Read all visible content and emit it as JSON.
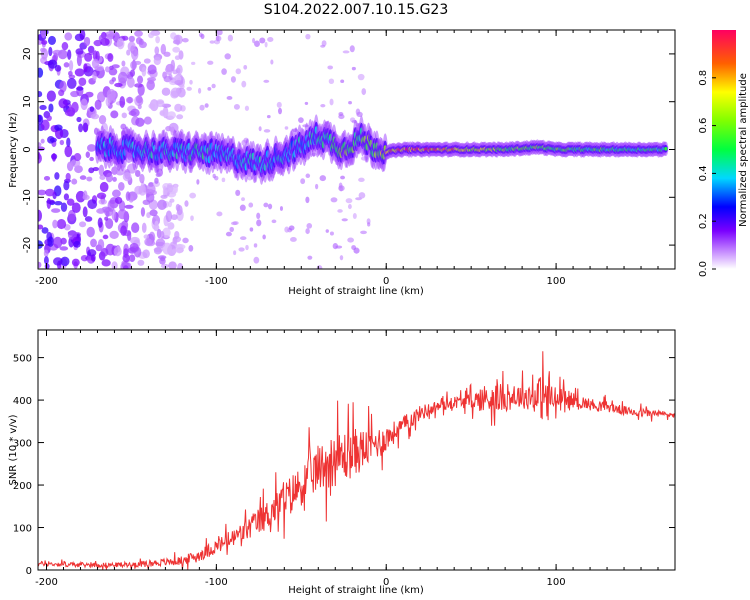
{
  "title": "S104.2022.007.10.15.G23",
  "chart_data": [
    {
      "type": "heatmap",
      "xlabel": "Height of straight line (km)",
      "ylabel": "Frequency (Hz)",
      "xlim": [
        -205,
        170
      ],
      "ylim": [
        -25,
        25
      ],
      "xticks": [
        -200,
        -100,
        0,
        100
      ],
      "yticks": [
        -20,
        -10,
        0,
        10,
        20
      ],
      "colorbar": {
        "label": "Normalized spectral amplitude",
        "range": [
          0,
          1
        ],
        "ticks": [
          "0.0",
          "0.2",
          "0.4",
          "0.6",
          "0.8"
        ]
      },
      "ridge": [
        {
          "x": -170,
          "f": 0.5,
          "amp": 0.35
        },
        {
          "x": -150,
          "f": 0.0,
          "amp": 0.38
        },
        {
          "x": -130,
          "f": -0.5,
          "amp": 0.4
        },
        {
          "x": -110,
          "f": -0.5,
          "amp": 0.45
        },
        {
          "x": -100,
          "f": -1.0,
          "amp": 0.4
        },
        {
          "x": -85,
          "f": -2.0,
          "amp": 0.38
        },
        {
          "x": -75,
          "f": -3.0,
          "amp": 0.4
        },
        {
          "x": -60,
          "f": -1.0,
          "amp": 0.38
        },
        {
          "x": -48,
          "f": 1.0,
          "amp": 0.4
        },
        {
          "x": -40,
          "f": 3.0,
          "amp": 0.45
        },
        {
          "x": -35,
          "f": 2.0,
          "amp": 0.45
        },
        {
          "x": -25,
          "f": 0.0,
          "amp": 0.6
        },
        {
          "x": -15,
          "f": 2.5,
          "amp": 0.55
        },
        {
          "x": -8,
          "f": 0.5,
          "amp": 0.6
        },
        {
          "x": 0,
          "f": -0.5,
          "amp": 0.7
        },
        {
          "x": 10,
          "f": 0.0,
          "amp": 0.95
        },
        {
          "x": 30,
          "f": 0.0,
          "amp": 0.85
        },
        {
          "x": 50,
          "f": 0.0,
          "amp": 0.7
        },
        {
          "x": 70,
          "f": 0.0,
          "amp": 0.62
        },
        {
          "x": 90,
          "f": 0.5,
          "amp": 0.58
        },
        {
          "x": 100,
          "f": 0.0,
          "amp": 0.55
        },
        {
          "x": 120,
          "f": 0.0,
          "amp": 0.52
        },
        {
          "x": 140,
          "f": 0.0,
          "amp": 0.5
        },
        {
          "x": 165,
          "f": 0.0,
          "amp": 0.5
        }
      ],
      "noise_region": {
        "x": [
          -205,
          -120
        ],
        "f": [
          -25,
          25
        ],
        "amp": 0.3
      }
    },
    {
      "type": "line",
      "xlabel": "Height of straight line (km)",
      "ylabel": "SNR (10 * v/v)",
      "xlim": [
        -205,
        170
      ],
      "ylim": [
        0,
        565
      ],
      "xticks": [
        -200,
        -100,
        0,
        100
      ],
      "yticks": [
        0,
        100,
        200,
        300,
        400,
        500
      ],
      "color": "#ee3333",
      "x": [
        -205,
        -180,
        -160,
        -140,
        -120,
        -110,
        -100,
        -90,
        -80,
        -70,
        -60,
        -50,
        -40,
        -30,
        -20,
        -10,
        0,
        10,
        20,
        30,
        40,
        50,
        60,
        70,
        80,
        90,
        95,
        100,
        110,
        120,
        130,
        140,
        150,
        160,
        170
      ],
      "y": [
        15,
        12,
        12,
        15,
        22,
        35,
        55,
        75,
        100,
        130,
        165,
        200,
        240,
        260,
        275,
        290,
        310,
        340,
        370,
        385,
        395,
        398,
        405,
        405,
        410,
        410,
        405,
        400,
        400,
        390,
        385,
        375,
        370,
        368,
        365
      ],
      "amplitude": [
        8,
        8,
        8,
        10,
        15,
        20,
        25,
        30,
        40,
        50,
        60,
        70,
        80,
        90,
        85,
        60,
        45,
        30,
        25,
        20,
        20,
        25,
        55,
        45,
        40,
        65,
        120,
        40,
        25,
        20,
        18,
        15,
        15,
        12,
        10
      ]
    }
  ]
}
